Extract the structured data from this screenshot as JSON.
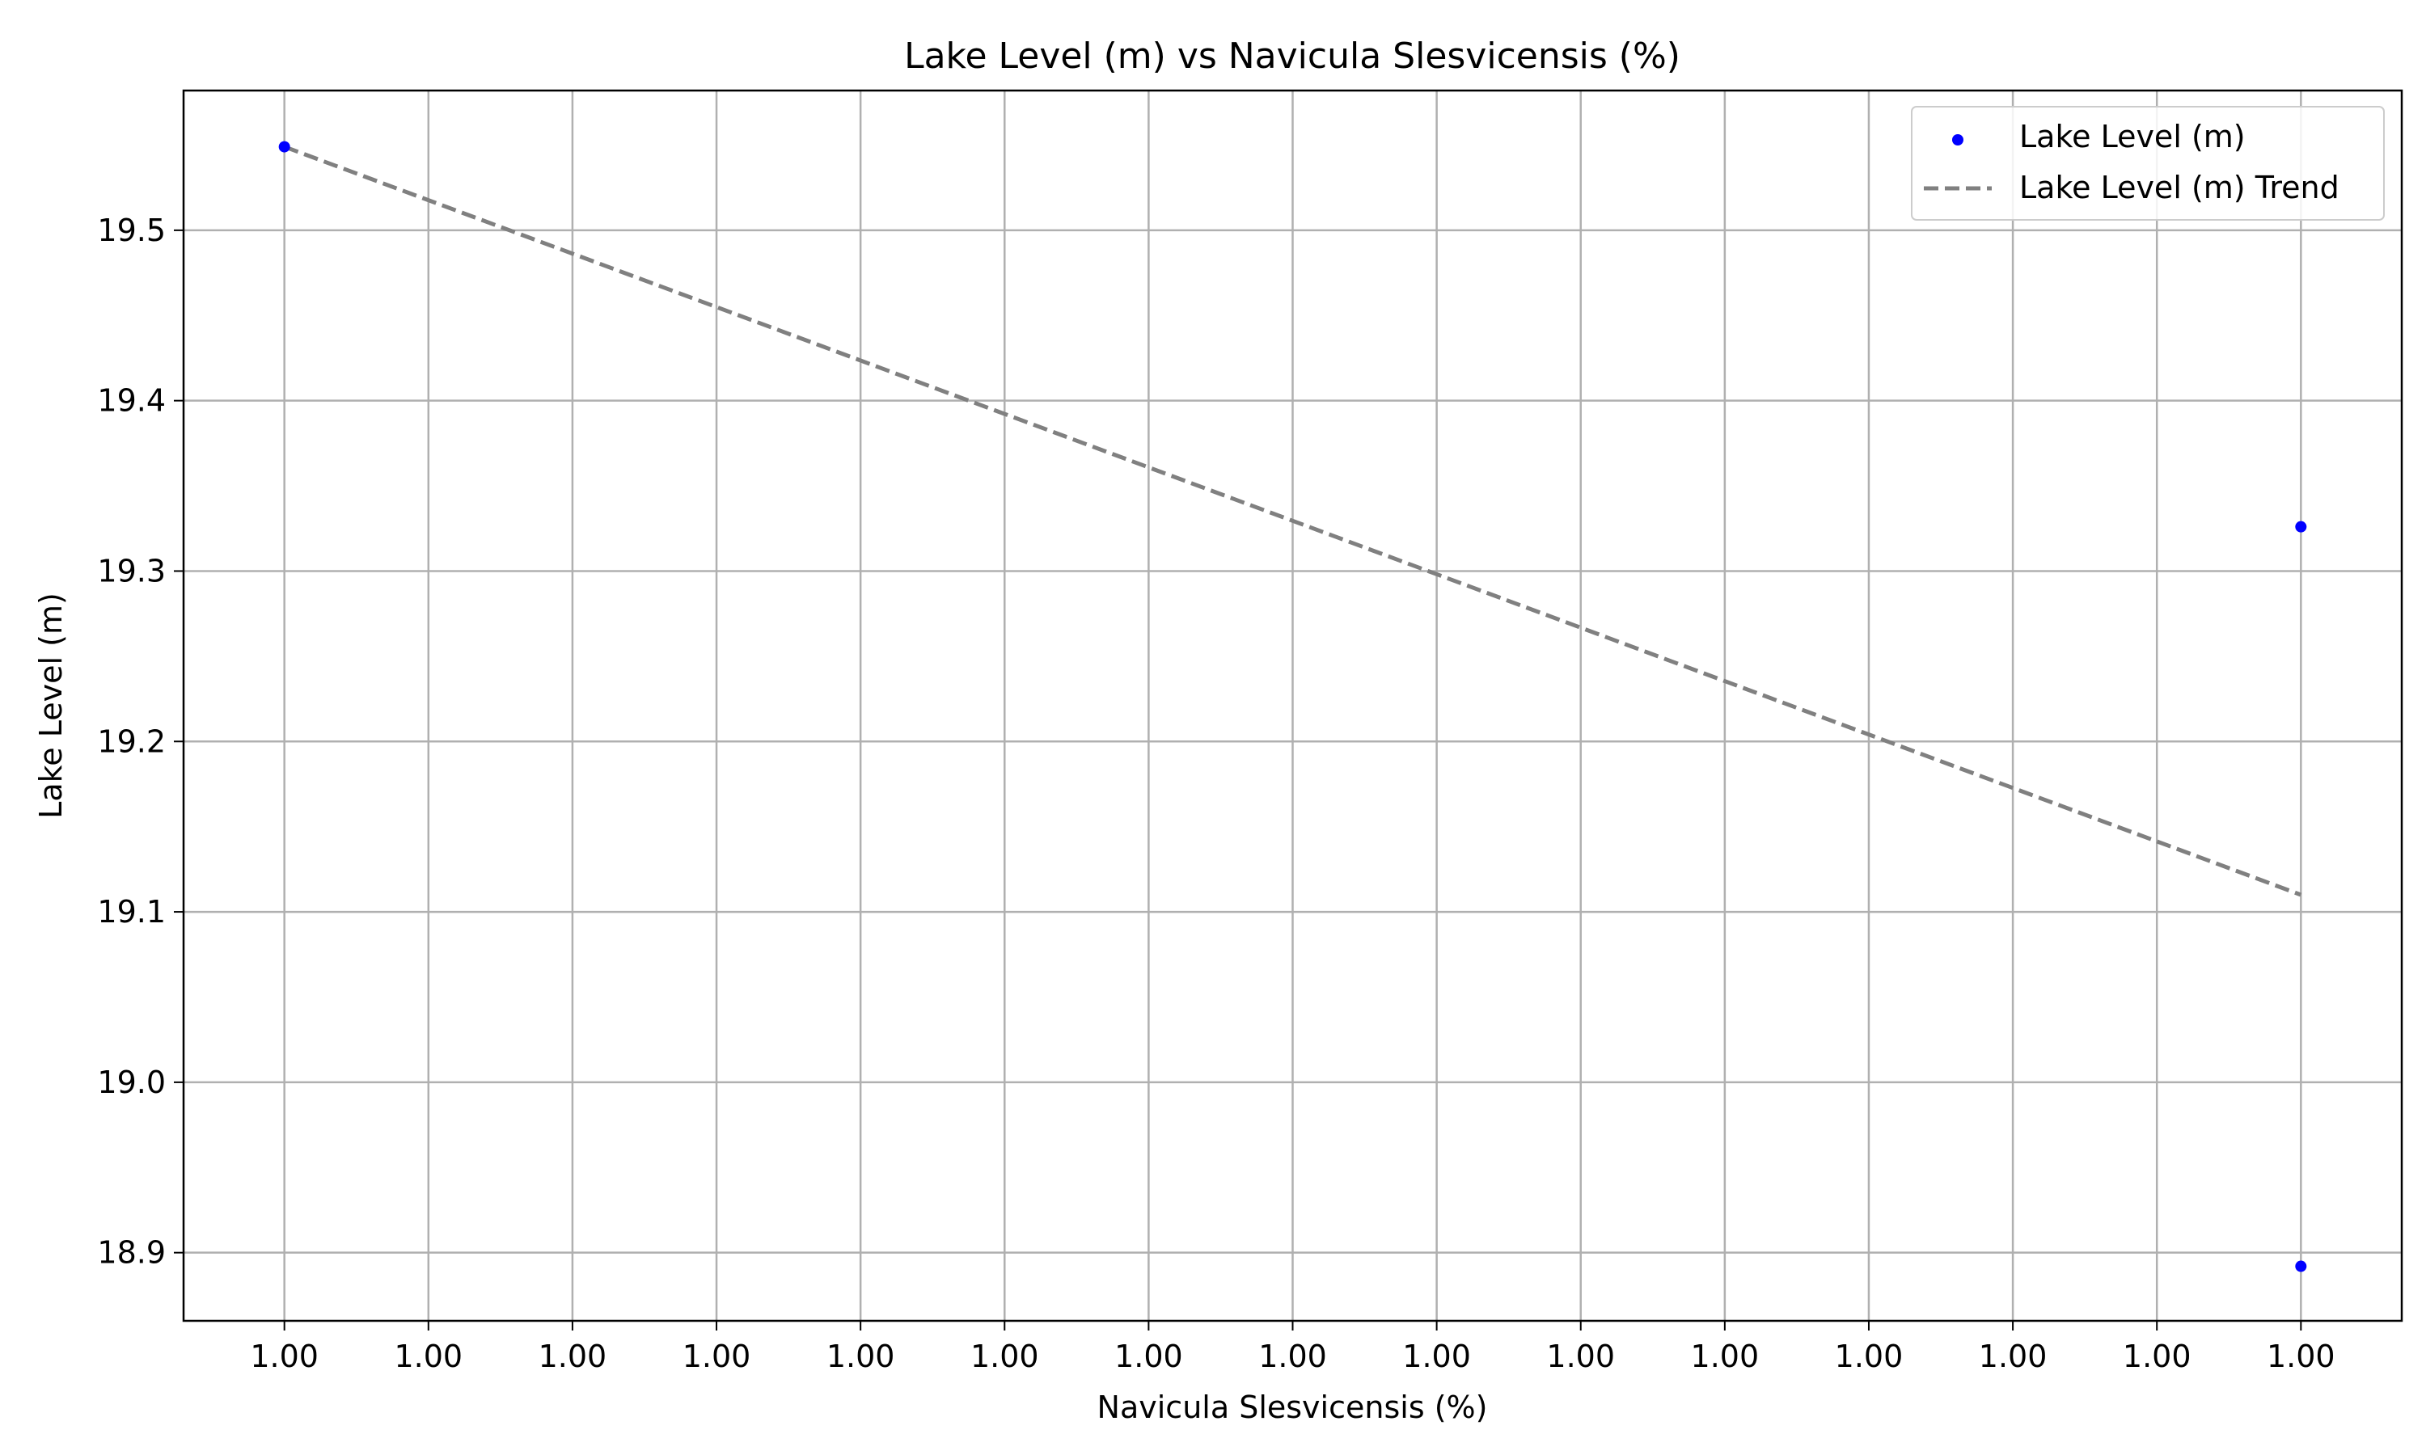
{
  "chart_data": {
    "type": "scatter",
    "title": "Lake Level (m) vs Navicula Slesvicensis (%)",
    "xlabel": "Navicula Slesvicensis (%)",
    "ylabel": "Lake Level (m)",
    "x_tick_labels": [
      "1.00",
      "1.00",
      "1.00",
      "1.00",
      "1.00",
      "1.00",
      "1.00",
      "1.00",
      "1.00",
      "1.00",
      "1.00",
      "1.00",
      "1.00",
      "1.00",
      "1.00"
    ],
    "y_ticks": [
      18.9,
      19.0,
      19.1,
      19.2,
      19.3,
      19.4,
      19.5
    ],
    "y_tick_labels": [
      "18.9",
      "19.0",
      "19.1",
      "19.2",
      "19.3",
      "19.4",
      "19.5"
    ],
    "xlim": [
      -0.7,
      14.7
    ],
    "ylim": [
      18.86,
      19.582
    ],
    "grid": true,
    "legend_position": "top-right",
    "series": [
      {
        "name": "Lake Level (m)",
        "kind": "scatter",
        "color": "#0000ff",
        "points": [
          [
            0,
            19.549
          ],
          [
            14,
            19.326
          ],
          [
            14,
            18.892
          ]
        ]
      },
      {
        "name": "Lake Level (m) Trend",
        "kind": "line",
        "style": "dashed",
        "color": "#808080",
        "points": [
          [
            0,
            19.549
          ],
          [
            14,
            19.11
          ]
        ]
      }
    ]
  }
}
